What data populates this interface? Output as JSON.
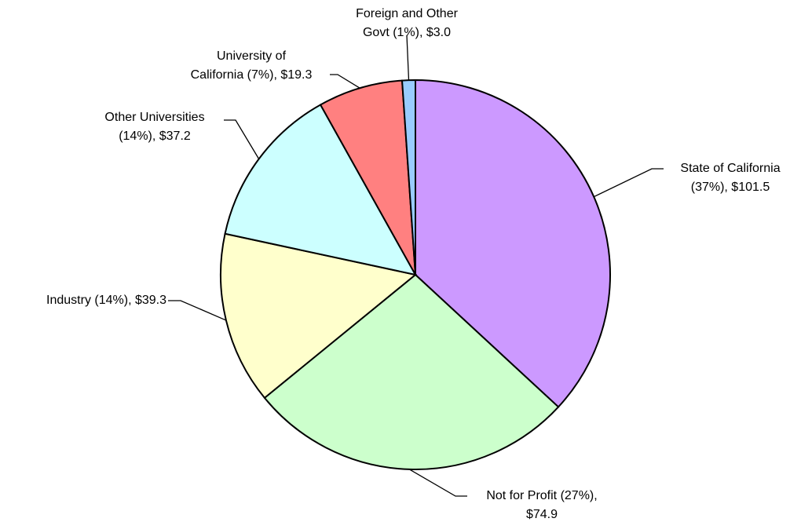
{
  "chart_data": {
    "type": "pie",
    "categories": [
      "State of California",
      "Not for Profit",
      "Industry",
      "Other Universities",
      "University of California",
      "Foreign and Other Govt"
    ],
    "labels": [
      [
        "State of California",
        "(37%), $101.5"
      ],
      [
        "Not for Profit (27%),",
        "$74.9"
      ],
      [
        "Industry (14%), $39.3"
      ],
      [
        "Other Universities",
        "(14%), $37.2"
      ],
      [
        "University of",
        "California (7%), $19.3"
      ],
      [
        "Foreign and Other",
        "Govt (1%), $3.0"
      ]
    ],
    "values": [
      101.5,
      74.9,
      39.3,
      37.2,
      19.3,
      3.0
    ],
    "colors": [
      "#cc99ff",
      "#ccffcc",
      "#ffffcc",
      "#ccffff",
      "#ff8080",
      "#99ccff"
    ]
  }
}
